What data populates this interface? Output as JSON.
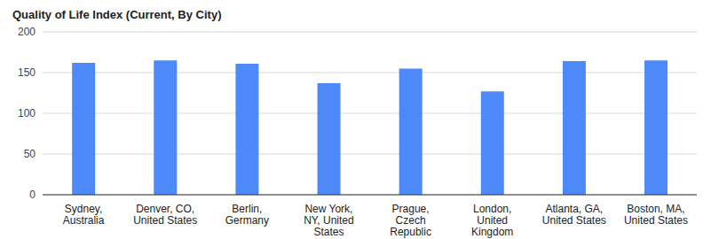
{
  "chart_data": {
    "type": "bar",
    "title": "Quality of Life Index (Current, By City)",
    "categories": [
      "Sydney, Australia",
      "Denver, CO, United States",
      "Berlin, Germany",
      "New York, NY, United States",
      "Prague, Czech Republic",
      "London, United Kingdom",
      "Atlanta, GA, United States",
      "Boston, MA, United States"
    ],
    "values": [
      162,
      165,
      161,
      137,
      155,
      127,
      164,
      165
    ],
    "color": "#4d89f9",
    "ylim": [
      0,
      200
    ],
    "yticks": [
      0,
      50,
      100,
      150,
      200
    ],
    "grid": true
  }
}
